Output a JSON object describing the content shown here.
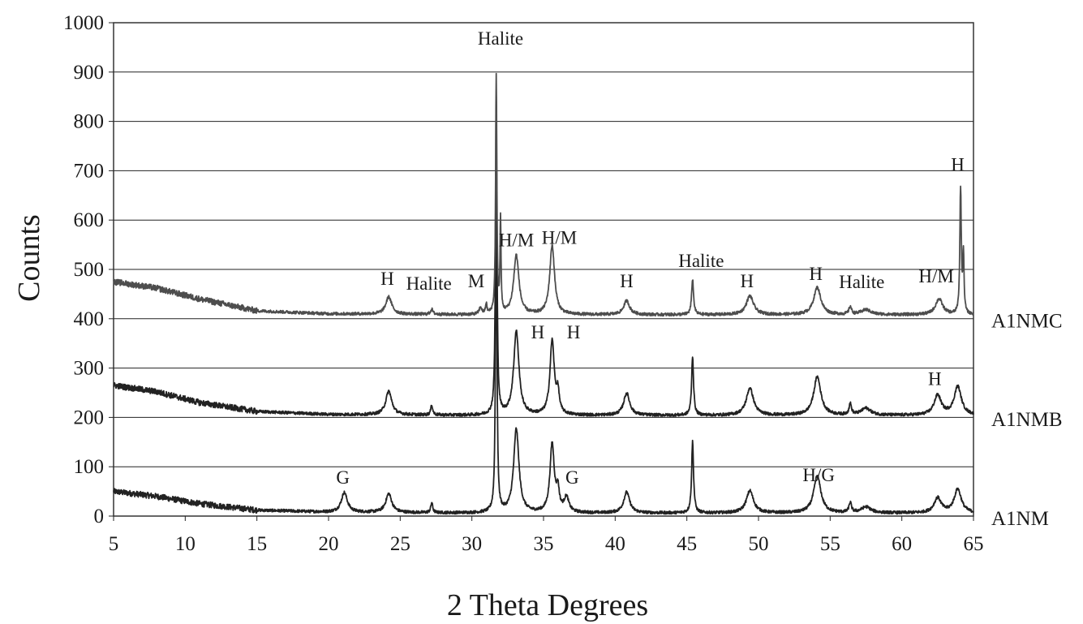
{
  "chart_data": {
    "type": "line",
    "title": "",
    "xlabel": "2 Theta Degrees",
    "ylabel": "Counts",
    "xlim": [
      5,
      65
    ],
    "ylim": [
      0,
      1000
    ],
    "x_ticks": [
      5,
      10,
      15,
      20,
      25,
      30,
      35,
      40,
      45,
      50,
      55,
      60,
      65
    ],
    "y_ticks": [
      0,
      100,
      200,
      300,
      400,
      500,
      600,
      700,
      800,
      900,
      1000
    ],
    "grid": "horizontal",
    "legend": "labels at right end of each trace",
    "series": [
      {
        "name": "A1NM",
        "color": "#222222",
        "baseline": 5,
        "background": [
          [
            5,
            50
          ],
          [
            8,
            40
          ],
          [
            11,
            25
          ],
          [
            15,
            12
          ],
          [
            20,
            8
          ],
          [
            30,
            6
          ],
          [
            45,
            6
          ],
          [
            65,
            6
          ]
        ],
        "peaks": [
          [
            21.1,
            40,
            0.25
          ],
          [
            24.2,
            38,
            0.25
          ],
          [
            27.2,
            20,
            0.08
          ],
          [
            31.7,
            620,
            0.06
          ],
          [
            33.1,
            170,
            0.22
          ],
          [
            35.6,
            138,
            0.18
          ],
          [
            36.0,
            40,
            0.12
          ],
          [
            36.6,
            30,
            0.2
          ],
          [
            40.8,
            42,
            0.25
          ],
          [
            45.4,
            145,
            0.08
          ],
          [
            49.4,
            45,
            0.3
          ],
          [
            54.1,
            75,
            0.3
          ],
          [
            56.4,
            20,
            0.1
          ],
          [
            57.5,
            12,
            0.4
          ],
          [
            62.5,
            30,
            0.3
          ],
          [
            63.9,
            48,
            0.3
          ]
        ],
        "label_y": 0,
        "series_label_y": -3
      },
      {
        "name": "A1NMB",
        "color": "#222222",
        "baseline": 205,
        "background": [
          [
            5,
            265
          ],
          [
            8,
            252
          ],
          [
            11,
            230
          ],
          [
            15,
            212
          ],
          [
            20,
            206
          ],
          [
            30,
            204
          ],
          [
            45,
            204
          ],
          [
            65,
            204
          ]
        ],
        "peaks": [
          [
            24.2,
            48,
            0.25
          ],
          [
            27.2,
            20,
            0.08
          ],
          [
            31.7,
            640,
            0.06
          ],
          [
            33.1,
            170,
            0.22
          ],
          [
            35.6,
            150,
            0.18
          ],
          [
            36.0,
            40,
            0.12
          ],
          [
            40.8,
            45,
            0.25
          ],
          [
            45.4,
            120,
            0.08
          ],
          [
            49.4,
            55,
            0.3
          ],
          [
            54.1,
            78,
            0.3
          ],
          [
            56.4,
            22,
            0.1
          ],
          [
            57.5,
            14,
            0.4
          ],
          [
            62.5,
            40,
            0.3
          ],
          [
            63.9,
            58,
            0.3
          ]
        ],
        "label_y": 200,
        "series_label_y": 197
      },
      {
        "name": "A1NMC",
        "color": "#4d4d4d",
        "baseline": 410,
        "background": [
          [
            5,
            475
          ],
          [
            8,
            462
          ],
          [
            11,
            440
          ],
          [
            15,
            416
          ],
          [
            20,
            410
          ],
          [
            30,
            408
          ],
          [
            45,
            408
          ],
          [
            65,
            408
          ]
        ],
        "peaks": [
          [
            24.2,
            35,
            0.25
          ],
          [
            27.2,
            10,
            0.1
          ],
          [
            30.6,
            14,
            0.1
          ],
          [
            31.0,
            20,
            0.06
          ],
          [
            31.7,
            480,
            0.05
          ],
          [
            32.0,
            190,
            0.04
          ],
          [
            33.1,
            120,
            0.22
          ],
          [
            35.6,
            140,
            0.2
          ],
          [
            40.8,
            28,
            0.25
          ],
          [
            45.4,
            72,
            0.08
          ],
          [
            49.4,
            38,
            0.3
          ],
          [
            54.1,
            55,
            0.3
          ],
          [
            56.4,
            16,
            0.1
          ],
          [
            57.5,
            10,
            0.4
          ],
          [
            62.6,
            32,
            0.3
          ],
          [
            64.1,
            255,
            0.06
          ],
          [
            64.3,
            120,
            0.05
          ]
        ],
        "label_y": 400,
        "series_label_y": 397
      }
    ],
    "annotations": [
      {
        "text": "Halite",
        "x": 32.0,
        "y": 956
      },
      {
        "text": "H",
        "x": 63.9,
        "y": 700
      },
      {
        "text": "H/M",
        "x": 33.1,
        "y": 547
      },
      {
        "text": "H/M",
        "x": 36.1,
        "y": 552
      },
      {
        "text": "Halite",
        "x": 46.0,
        "y": 505
      },
      {
        "text": "H",
        "x": 24.1,
        "y": 469
      },
      {
        "text": "Halite",
        "x": 27.0,
        "y": 459
      },
      {
        "text": "M",
        "x": 30.3,
        "y": 464
      },
      {
        "text": "H",
        "x": 40.8,
        "y": 464
      },
      {
        "text": "H",
        "x": 49.2,
        "y": 464
      },
      {
        "text": "H",
        "x": 54.0,
        "y": 479
      },
      {
        "text": "Halite",
        "x": 57.2,
        "y": 462
      },
      {
        "text": "H/M",
        "x": 62.4,
        "y": 474
      },
      {
        "text": "H",
        "x": 34.6,
        "y": 360
      },
      {
        "text": "H",
        "x": 37.1,
        "y": 360
      },
      {
        "text": "H",
        "x": 62.3,
        "y": 266
      },
      {
        "text": "G",
        "x": 21.0,
        "y": 66
      },
      {
        "text": "G",
        "x": 37.0,
        "y": 66
      },
      {
        "text": "H/G",
        "x": 54.2,
        "y": 71
      }
    ]
  }
}
